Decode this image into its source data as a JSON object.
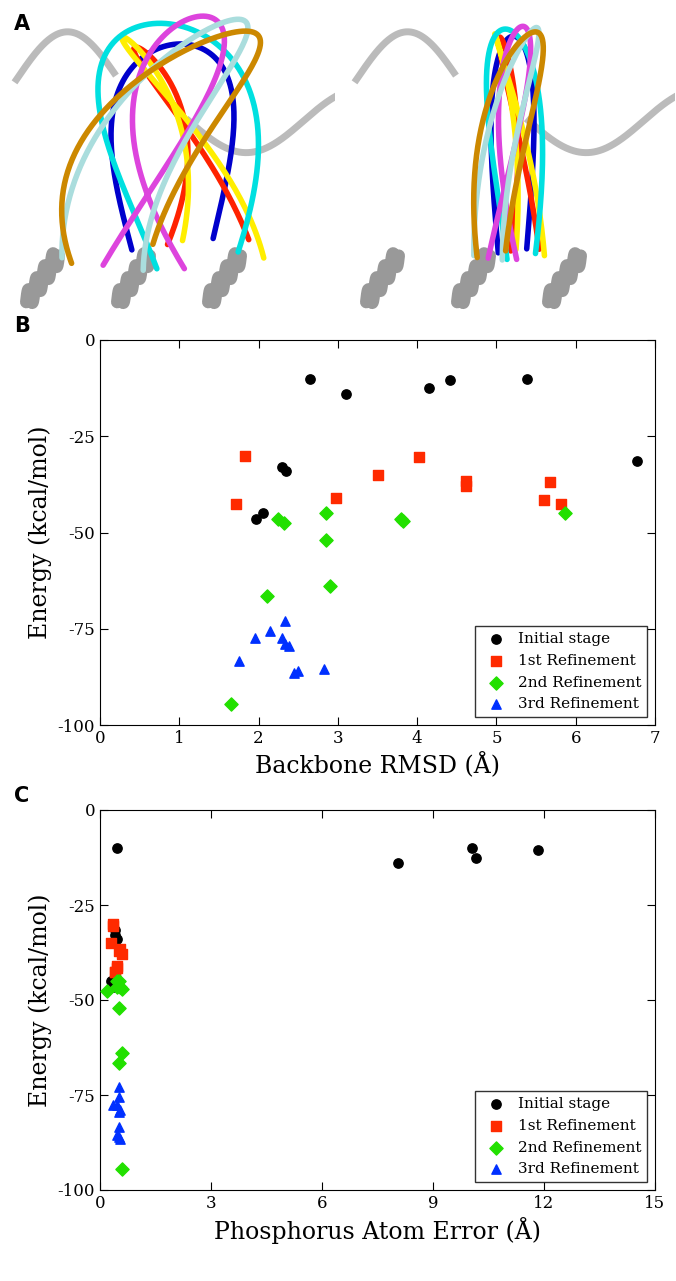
{
  "panel_a": {
    "label": "A"
  },
  "chart_data": [
    {
      "type": "scatter",
      "title": "B",
      "x_label": "Backbone RMSD (Å)",
      "y_label": "Energy (kcal/mol)",
      "xlim": [
        0,
        7
      ],
      "xticks": [
        0,
        1,
        2,
        3,
        4,
        5,
        6,
        7
      ],
      "ylim": [
        -100,
        0
      ],
      "yticks": [
        -100,
        -75,
        -50,
        -25,
        0
      ],
      "legend": "lower right",
      "series": [
        {
          "name": "Initial stage",
          "color": "#000000",
          "marker": "circle",
          "x": [
            2.65,
            3.1,
            4.15,
            4.42,
            5.38,
            6.77,
            2.3,
            2.35,
            1.97,
            2.05
          ],
          "values": [
            -10,
            -14,
            -12.5,
            -10.5,
            -10,
            -31.5,
            -33,
            -34,
            -46.5,
            -45
          ]
        },
        {
          "name": "1st Refinement",
          "color": "#ff2a00",
          "marker": "square",
          "x": [
            1.83,
            1.72,
            2.98,
            3.5,
            4.02,
            4.62,
            4.62,
            5.68,
            5.6,
            5.82
          ],
          "values": [
            -30,
            -42.5,
            -41,
            -35,
            -30.5,
            -36.5,
            -38,
            -37,
            -41.5,
            -42.5
          ]
        },
        {
          "name": "2nd Refinement",
          "color": "#22e000",
          "marker": "diamond",
          "x": [
            2.25,
            2.32,
            2.85,
            3.8,
            3.82,
            2.85,
            2.9,
            2.1,
            1.65,
            5.87
          ],
          "values": [
            -46.5,
            -47.5,
            -45,
            -46.5,
            -47,
            -52,
            -64,
            -66.5,
            -94.5,
            -45
          ]
        },
        {
          "name": "3rd Refinement",
          "color": "#0030ff",
          "marker": "triangle",
          "x": [
            1.75,
            1.95,
            2.15,
            2.33,
            2.3,
            2.33,
            2.38,
            2.45,
            2.5,
            2.83
          ],
          "values": [
            -83.5,
            -77.5,
            -75.5,
            -73,
            -77.5,
            -79,
            -79.5,
            -86.5,
            -86,
            -85.5
          ]
        }
      ]
    },
    {
      "type": "scatter",
      "title": "C",
      "x_label": "Phosphorus Atom Error (Å)",
      "y_label": "Energy (kcal/mol)",
      "xlim": [
        0,
        15
      ],
      "xticks": [
        0,
        3,
        6,
        9,
        12,
        15
      ],
      "ylim": [
        -100,
        0
      ],
      "yticks": [
        -100,
        -75,
        -50,
        -25,
        0
      ],
      "legend": "lower right",
      "series": [
        {
          "name": "Initial stage",
          "color": "#000000",
          "marker": "circle",
          "x": [
            0.45,
            8.05,
            10.15,
            10.05,
            11.85,
            0.4,
            0.4,
            0.45,
            0.35,
            0.3
          ],
          "values": [
            -10,
            -14,
            -12.5,
            -10,
            -10.5,
            -31.5,
            -33,
            -34,
            -46.5,
            -45
          ]
        },
        {
          "name": "1st Refinement",
          "color": "#ff2a00",
          "marker": "square",
          "x": [
            0.35,
            0.4,
            0.45,
            0.3,
            0.35,
            0.55,
            0.6,
            0.5,
            0.45,
            0.4
          ],
          "values": [
            -30,
            -42.5,
            -41,
            -35,
            -30.5,
            -36.5,
            -38,
            -37,
            -41.5,
            -42.5
          ]
        },
        {
          "name": "2nd Refinement",
          "color": "#22e000",
          "marker": "diamond",
          "x": [
            0.45,
            0.2,
            0.5,
            0.55,
            0.6,
            0.5,
            0.6,
            0.5,
            0.6,
            0.45
          ],
          "values": [
            -46.5,
            -47.5,
            -45,
            -46.5,
            -47,
            -52,
            -64,
            -66.5,
            -94.5,
            -45
          ]
        },
        {
          "name": "3rd Refinement",
          "color": "#0030ff",
          "marker": "triangle",
          "x": [
            0.5,
            0.35,
            0.5,
            0.5,
            0.45,
            0.55,
            0.5,
            0.55,
            0.5,
            0.45
          ],
          "values": [
            -83.5,
            -77.5,
            -75.5,
            -73,
            -77.5,
            -79,
            -79.5,
            -86.5,
            -86,
            -85.5
          ]
        }
      ]
    }
  ]
}
